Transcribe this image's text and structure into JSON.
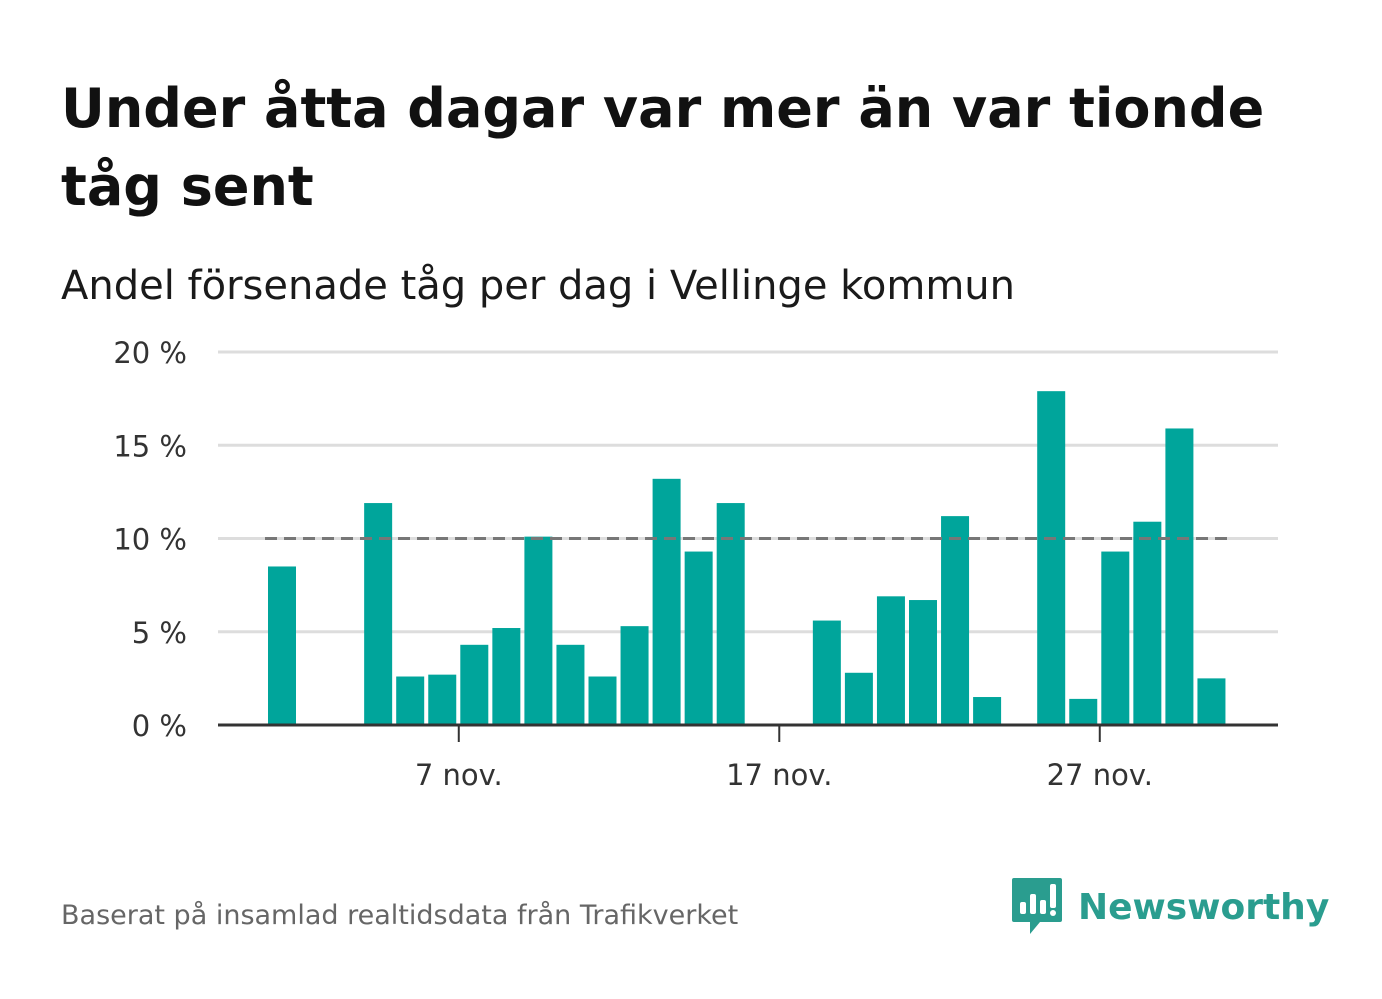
{
  "title": "Under åtta dagar var mer än var tionde tåg sent",
  "subtitle": "Andel försenade tåg per dag i Vellinge kommun",
  "source": "Baserat på insamlad realtidsdata från Trafikverket",
  "brand": {
    "name": "Newsworthy",
    "icon": "newsworthy-logo-icon",
    "color": "#2a9d8f"
  },
  "colors": {
    "bar": "#00a59b",
    "reference_line": "#777777",
    "grid": "#dddddd",
    "axis": "#333333"
  },
  "chart_data": {
    "type": "bar",
    "title": "Andel försenade tåg per dag i Vellinge kommun",
    "xlabel": "",
    "ylabel": "",
    "x_start_label": "1 nov.",
    "categories": [
      "1 nov.",
      "2 nov.",
      "3 nov.",
      "4 nov.",
      "5 nov.",
      "6 nov.",
      "7 nov.",
      "8 nov.",
      "9 nov.",
      "10 nov.",
      "11 nov.",
      "12 nov.",
      "13 nov.",
      "14 nov.",
      "15 nov.",
      "16 nov.",
      "17 nov.",
      "18 nov.",
      "19 nov.",
      "20 nov.",
      "21 nov.",
      "22 nov.",
      "23 nov.",
      "24 nov.",
      "25 nov.",
      "26 nov.",
      "27 nov.",
      "28 nov.",
      "29 nov.",
      "30 nov."
    ],
    "values": [
      8.5,
      null,
      null,
      11.9,
      2.6,
      2.7,
      4.3,
      5.2,
      10.1,
      4.3,
      2.6,
      5.3,
      13.2,
      9.3,
      11.9,
      null,
      null,
      5.6,
      2.8,
      6.9,
      6.7,
      11.2,
      1.5,
      null,
      17.9,
      1.4,
      9.3,
      10.9,
      15.9,
      2.5
    ],
    "ylim": [
      0,
      20
    ],
    "yticks": [
      0,
      5,
      10,
      15,
      20
    ],
    "ytick_labels": [
      "0 %",
      "5 %",
      "10 %",
      "15 %",
      "20 %"
    ],
    "xticks": [
      "7 nov.",
      "17 nov.",
      "27 nov."
    ],
    "reference_line": {
      "value": 10,
      "style": "dashed"
    },
    "grid": true,
    "legend": "none"
  }
}
